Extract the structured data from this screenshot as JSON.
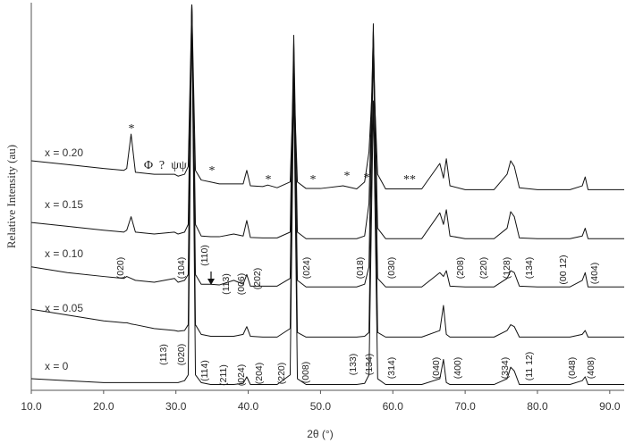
{
  "chart_data": {
    "type": "line",
    "xlabel": "2θ (°)",
    "ylabel": "Relative Intensity (au)",
    "xlim": [
      10,
      92
    ],
    "ylim": [
      0,
      100
    ],
    "xticks": [
      {
        "value": 10,
        "label": "10.0"
      },
      {
        "value": 20,
        "label": "20.0"
      },
      {
        "value": 30,
        "label": "30.0"
      },
      {
        "value": 40,
        "label": "40.0"
      },
      {
        "value": 50,
        "label": "50.0"
      },
      {
        "value": 60,
        "label": "60.0"
      },
      {
        "value": 70,
        "label": "70.0"
      },
      {
        "value": 80,
        "label": "80.0"
      },
      {
        "value": 90,
        "label": "90.0"
      }
    ],
    "x": [
      10,
      15,
      20,
      22.8,
      23.2,
      23.8,
      24.4,
      27,
      29.8,
      30.3,
      31.2,
      31.7,
      32.2,
      32.7,
      33.5,
      34.8,
      36,
      38,
      39.3,
      39.8,
      40.3,
      42,
      42.7,
      44,
      45.8,
      46.3,
      46.8,
      48,
      50,
      53.1,
      55,
      56.1,
      56.7,
      57.3,
      57.9,
      59,
      62,
      64,
      66.5,
      67.0,
      67.4,
      67.9,
      70,
      74,
      75.8,
      76.3,
      76.8,
      77.5,
      80,
      84.5,
      86.2,
      86.6,
      87,
      89,
      92
    ],
    "series": [
      {
        "name": "x = 0",
        "color": "#111111",
        "values": [
          3,
          2.5,
          2,
          2,
          2,
          2,
          2,
          2,
          2,
          2,
          2.5,
          4,
          100,
          4,
          2,
          1.5,
          1.5,
          1.5,
          1.8,
          3.5,
          1.5,
          1.5,
          1.5,
          1.5,
          4,
          80,
          3,
          1.5,
          1.5,
          1.5,
          1.5,
          1.8,
          4,
          75,
          3,
          1.5,
          1.5,
          1.5,
          3,
          8,
          2,
          1.5,
          1.5,
          1.5,
          3,
          6,
          5,
          1.5,
          1.5,
          1.5,
          2.5,
          3.5,
          1.5,
          1.5,
          1.5
        ]
      },
      {
        "name": "x = 0.05",
        "color": "#111111",
        "values": [
          21,
          19.5,
          18,
          17.5,
          17.5,
          17.2,
          17,
          16,
          15.5,
          15.3,
          15.5,
          17,
          100,
          17,
          14.5,
          14,
          14,
          14,
          14.5,
          16.5,
          14,
          13.8,
          13.8,
          13.8,
          16,
          85,
          15,
          13.8,
          13.8,
          13.8,
          13.8,
          14,
          15,
          90,
          15,
          13.8,
          13.8,
          13.8,
          15.5,
          22,
          14.5,
          13.8,
          13.8,
          13.8,
          15.5,
          17,
          16.5,
          13.8,
          13.8,
          13.8,
          14.5,
          15.5,
          13.8,
          13.8,
          13.8
        ]
      },
      {
        "name": "x = 0.10",
        "color": "#111111",
        "values": [
          32,
          30.5,
          29.5,
          29,
          29.5,
          29,
          28.5,
          28,
          29,
          28,
          28.5,
          30,
          100,
          30,
          27.5,
          27.5,
          27.3,
          28.5,
          27.5,
          30,
          27,
          27,
          27,
          27,
          29,
          90,
          28.5,
          26.8,
          26.8,
          26.8,
          26.8,
          27.5,
          32,
          95,
          29,
          26.8,
          26.8,
          26.8,
          30.5,
          29.5,
          31,
          27,
          26.8,
          26.8,
          29,
          31,
          30.5,
          27,
          26.8,
          26.8,
          28.5,
          30.5,
          26.8,
          26.8,
          26.8
        ]
      },
      {
        "name": "x = 0.15",
        "color": "#111111",
        "values": [
          43.5,
          42.5,
          41.5,
          41,
          41.5,
          45,
          41,
          40.5,
          41,
          40.5,
          41,
          43,
          100,
          43,
          40,
          39.8,
          39.8,
          40.5,
          40,
          44,
          39.6,
          39.5,
          39.5,
          39.5,
          41,
          92,
          41,
          39.3,
          39.3,
          39.3,
          39.3,
          40,
          48.4,
          93,
          42,
          39.3,
          39.3,
          39.3,
          46,
          43,
          46.8,
          40,
          39.3,
          39.3,
          42,
          46.3,
          45,
          39.5,
          39.3,
          39.3,
          40,
          42,
          39.3,
          39.3,
          39.3
        ]
      },
      {
        "name": "x = 0.20",
        "color": "#111111",
        "values": [
          59.5,
          58.5,
          57.5,
          57,
          57.5,
          66.4,
          56.5,
          56,
          56,
          55.5,
          56,
          58,
          100,
          57,
          54.5,
          54,
          53.5,
          53.5,
          53.5,
          57,
          53,
          52.8,
          53.2,
          52.5,
          54,
          81.5,
          54,
          52.3,
          52.3,
          53,
          52.2,
          54,
          61.8,
          83.8,
          56,
          52.2,
          52.2,
          52.2,
          58.8,
          55,
          60,
          53,
          52,
          52,
          56,
          59.5,
          58,
          52.5,
          52,
          52,
          53,
          55.3,
          52,
          52,
          52
        ]
      }
    ],
    "annotations": [
      "(020)",
      "(104)",
      "(110)",
      "(113)",
      "(006)",
      "(202)",
      "(024)",
      "(018)",
      "(030)",
      "(208)",
      "(220)",
      "(128)",
      "(134)",
      "(00 12)",
      "(404)",
      "(113)",
      "(020)",
      "(114)",
      "(211)",
      "(024)",
      "(204)",
      "(220)",
      "(008)",
      "(133)",
      "(134)",
      "(314)",
      "(040)",
      "(400)",
      "(334)",
      "(11 12)",
      "(048)",
      "(408)",
      "*",
      "Φ",
      "?",
      "ψψ",
      "*",
      "*",
      "*",
      "*",
      "*",
      "**"
    ]
  }
}
